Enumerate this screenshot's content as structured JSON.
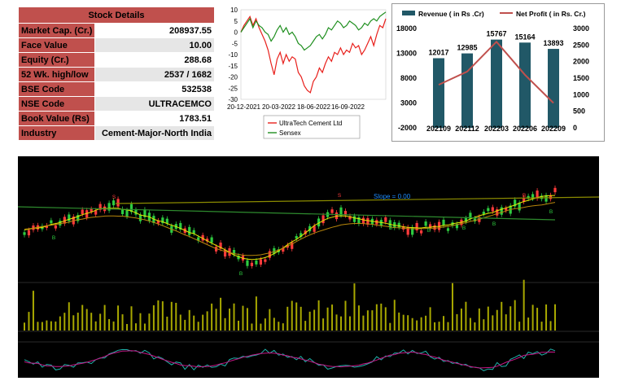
{
  "stock_details": {
    "title": "Stock Details",
    "rows": [
      {
        "label": "Market Cap. (Cr.)",
        "value": "208937.55"
      },
      {
        "label": "Face Value",
        "value": "10.00"
      },
      {
        "label": "Equity (Cr.)",
        "value": "288.68"
      },
      {
        "label": "52 Wk. high/low",
        "value": "2537 / 1682"
      },
      {
        "label": "BSE Code",
        "value": "532538"
      },
      {
        "label": "NSE Code",
        "value": "ULTRACEMCO"
      },
      {
        "label": "Book Value (Rs)",
        "value": "1783.51"
      },
      {
        "label": "Industry",
        "value": "Cement-Major-North India"
      }
    ]
  },
  "colors": {
    "table_header": "#c0504d",
    "table_key": "#c0504d",
    "ultratech": "#e8201c",
    "sensex": "#1f8f1f",
    "revenue_bar": "#215867",
    "net_profit_line": "#c0504d",
    "tech_bg": "#000000"
  },
  "chart_data": [
    {
      "type": "line",
      "x_tick_labels": [
        "20-12-2021",
        "20-03-2022",
        "18-06-2022",
        "16-09-2022"
      ],
      "yticks": [
        10,
        5,
        0,
        -5,
        -10,
        -15,
        -20,
        -25,
        -30
      ],
      "ylim": [
        -30,
        10
      ],
      "legend_placement": "bottom",
      "series": [
        {
          "name": "UltraTech Cement Ltd",
          "color": "#e8201c",
          "values": [
            0,
            3,
            5,
            7,
            3,
            6,
            2,
            -1,
            -4,
            -8,
            -14,
            -19,
            -12,
            -9,
            -14,
            -10,
            -13,
            -11,
            -12,
            -18,
            -20,
            -24,
            -26,
            -27,
            -22,
            -20,
            -16,
            -18,
            -14,
            -11,
            -13,
            -9,
            -10,
            -7,
            -10,
            -8,
            -9,
            -5,
            -7,
            -6,
            -10,
            -8,
            -5,
            -2,
            -6,
            -1,
            3,
            2,
            6
          ]
        },
        {
          "name": "Sensex",
          "color": "#1f8f1f",
          "values": [
            0,
            2,
            4,
            6,
            2,
            5,
            3,
            2,
            0,
            -1,
            -4,
            -2,
            1,
            3,
            0,
            2,
            -1,
            0,
            -2,
            -5,
            -6,
            -8,
            -7,
            -6,
            -4,
            -2,
            -1,
            -3,
            -1,
            2,
            1,
            3,
            5,
            4,
            2,
            3,
            5,
            4,
            3,
            1,
            2,
            4,
            3,
            5,
            6,
            5,
            7,
            8,
            9
          ]
        }
      ]
    },
    {
      "type": "bar",
      "categories": [
        "202109",
        "202112",
        "202203",
        "202206",
        "202209"
      ],
      "series": [
        {
          "name": "Revenue ( in Rs .Cr)",
          "values": [
            12017,
            12985,
            15767,
            15164,
            13893
          ],
          "axis": "left"
        },
        {
          "name": "Net Profit ( in Rs. Cr.)",
          "values": [
            1300,
            1700,
            2600,
            1600,
            750
          ],
          "axis": "right",
          "type": "line"
        }
      ],
      "left_ticks": [
        18000,
        13000,
        8000,
        3000,
        -2000
      ],
      "right_ticks": [
        3000,
        2500,
        2000,
        1500,
        1000,
        500,
        0
      ],
      "ylim_left": [
        -2000,
        18000
      ],
      "ylim_right": [
        0,
        3000
      ],
      "legend_placement": "top",
      "data_labels": true
    },
    {
      "type": "candlestick",
      "panel": "price",
      "background": "#000000",
      "annotation": "Slope = 0.00",
      "markers": [
        "S",
        "B",
        "S",
        "B",
        "B",
        "B",
        "B",
        "B",
        "B",
        "B"
      ]
    }
  ]
}
